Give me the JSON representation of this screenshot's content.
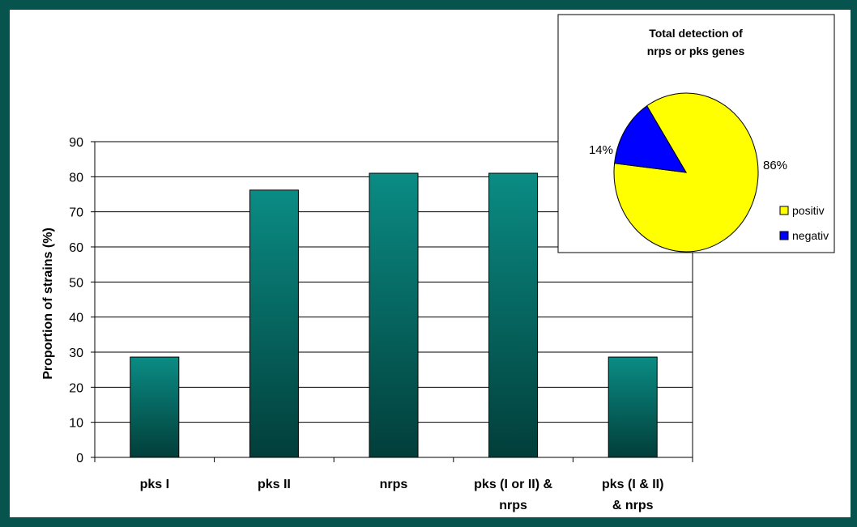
{
  "chart_data": [
    {
      "type": "bar",
      "categories": [
        [
          "pks I"
        ],
        [
          "pks II"
        ],
        [
          "nrps"
        ],
        [
          "pks (I or II) &",
          "nrps"
        ],
        [
          "pks (I & II)",
          "& nrps"
        ]
      ],
      "values": [
        28.6,
        76.2,
        81.0,
        81.0,
        28.6
      ],
      "title": "",
      "xlabel": "",
      "ylabel": "Proportion of strains (%)",
      "ylim": [
        0,
        90
      ],
      "yticks": [
        0,
        10,
        20,
        30,
        40,
        50,
        60,
        70,
        80,
        90
      ],
      "grid": true,
      "colors": {
        "bar_top": "#0a8c84",
        "bar_bottom": "#023e3a"
      }
    },
    {
      "type": "pie",
      "title_lines": [
        "Total detection of",
        "nrps or pks genes"
      ],
      "slices": [
        {
          "label": "positiv",
          "value": 86,
          "display": "86%",
          "color": "#ffff00"
        },
        {
          "label": "negativ",
          "value": 14,
          "display": "14%",
          "color": "#0000ff"
        }
      ],
      "legend_position": "right"
    }
  ]
}
